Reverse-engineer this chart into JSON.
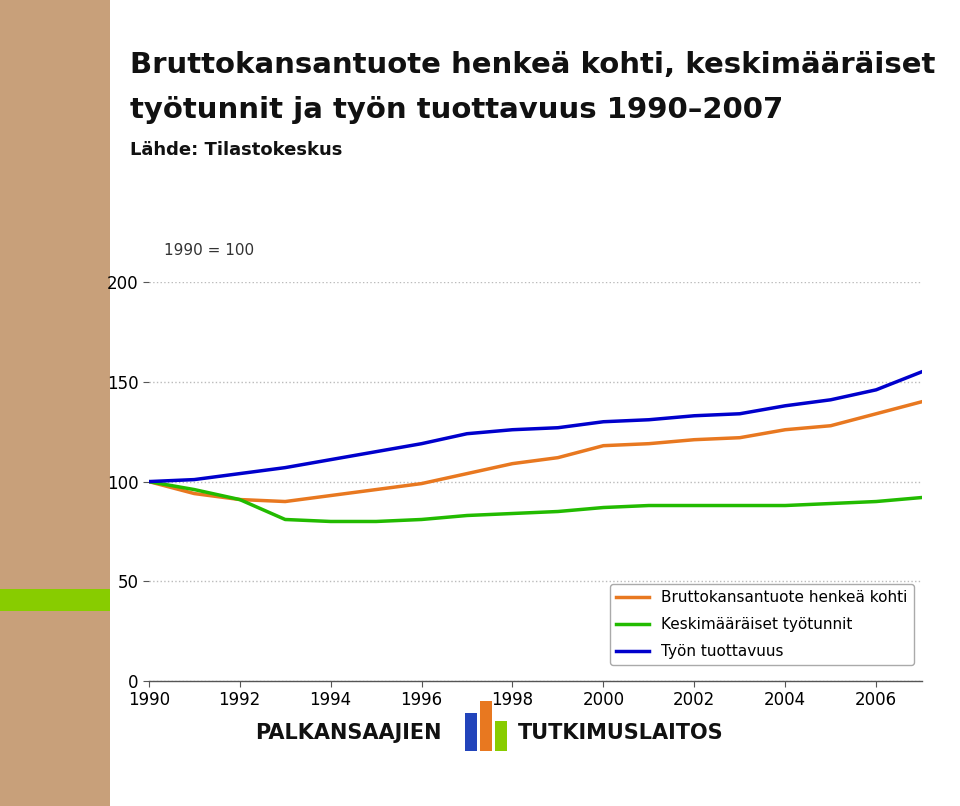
{
  "title_line1": "Bruttokansantuote henkeä kohti, keskimääräiset",
  "title_line2": "työtunnit ja työn tuottavuus 1990–2007",
  "subtitle": "Lähde: Tilastokeskus",
  "annotation": "1990 = 100",
  "years": [
    1990,
    1991,
    1992,
    1993,
    1994,
    1995,
    1996,
    1997,
    1998,
    1999,
    2000,
    2001,
    2002,
    2003,
    2004,
    2005,
    2006,
    2007
  ],
  "gdp_per_capita": [
    100,
    94,
    91,
    90,
    93,
    96,
    99,
    104,
    109,
    112,
    118,
    119,
    121,
    122,
    126,
    128,
    134,
    140
  ],
  "avg_hours": [
    100,
    96,
    91,
    81,
    80,
    80,
    81,
    83,
    84,
    85,
    87,
    88,
    88,
    88,
    88,
    89,
    90,
    92
  ],
  "labor_productivity": [
    100,
    101,
    104,
    107,
    111,
    115,
    119,
    124,
    126,
    127,
    130,
    131,
    133,
    134,
    138,
    141,
    146,
    155
  ],
  "color_orange": "#E87820",
  "color_green": "#22BB00",
  "color_blue": "#0000CC",
  "legend_labels": [
    "Bruttokansantuote henkeä kohti",
    "Keskimääräiset työtunnit",
    "Työn tuottavuus"
  ],
  "ylim": [
    0,
    200
  ],
  "yticks": [
    0,
    50,
    100,
    150,
    200
  ],
  "xlim": [
    1990,
    2007
  ],
  "xticks": [
    1990,
    1992,
    1994,
    1996,
    1998,
    2000,
    2002,
    2004,
    2006
  ],
  "bg_left_color_top": "#C8A07A",
  "bg_left_color_bottom": "#AAAAAA",
  "bg_accent_color": "#88CC00",
  "line_width": 2.5,
  "background_color": "#FFFFFF",
  "logo_blue": "#2244BB",
  "logo_orange": "#E87820",
  "logo_green": "#88CC00"
}
